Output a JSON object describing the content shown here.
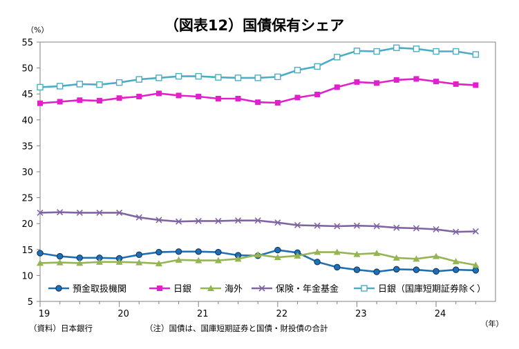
{
  "chart_data": {
    "type": "line",
    "title": "（図表12）国債保有シェア",
    "y_unit": "（%）",
    "x_unit": "（年）",
    "ylim": [
      5,
      55
    ],
    "yticks": [
      5,
      10,
      15,
      20,
      25,
      30,
      35,
      40,
      45,
      50,
      55
    ],
    "x_range": [
      2019,
      2024.75
    ],
    "x_tick_labels": [
      {
        "x": 2019,
        "label": "19"
      },
      {
        "x": 2020,
        "label": "20"
      },
      {
        "x": 2021,
        "label": "21"
      },
      {
        "x": 2022,
        "label": "22"
      },
      {
        "x": 2023,
        "label": "23"
      },
      {
        "x": 2024,
        "label": "24"
      }
    ],
    "x": [
      2019.0,
      2019.25,
      2019.5,
      2019.75,
      2020.0,
      2020.25,
      2020.5,
      2020.75,
      2021.0,
      2021.25,
      2021.5,
      2021.75,
      2022.0,
      2022.25,
      2022.5,
      2022.75,
      2023.0,
      2023.25,
      2023.5,
      2023.75,
      2024.0,
      2024.25,
      2024.5
    ],
    "grid": false,
    "legend_position": "bottom",
    "series": [
      {
        "name": "預金取扱機関",
        "color": "#1f6fb4",
        "marker": "circle",
        "values": [
          14.3,
          13.7,
          13.4,
          13.4,
          13.3,
          14.0,
          14.5,
          14.6,
          14.6,
          14.5,
          13.9,
          13.8,
          14.9,
          14.4,
          12.6,
          11.6,
          11.1,
          10.7,
          11.2,
          11.1,
          10.8,
          11.1,
          11.0
        ]
      },
      {
        "name": "日銀",
        "color": "#e020c8",
        "marker": "square",
        "values": [
          43.2,
          43.5,
          43.8,
          43.7,
          44.2,
          44.5,
          45.1,
          44.7,
          44.5,
          44.1,
          44.1,
          43.4,
          43.3,
          44.3,
          44.9,
          46.3,
          47.3,
          47.1,
          47.7,
          47.9,
          47.4,
          46.9,
          46.7
        ]
      },
      {
        "name": "海外",
        "color": "#95b452",
        "marker": "triangle",
        "values": [
          12.4,
          12.5,
          12.4,
          12.6,
          12.6,
          12.5,
          12.3,
          13.0,
          12.9,
          12.9,
          13.2,
          14.0,
          13.5,
          13.8,
          14.5,
          14.5,
          14.1,
          14.3,
          13.4,
          13.2,
          13.7,
          12.7,
          12.0
        ]
      },
      {
        "name": "保険・年金基金",
        "color": "#8064a2",
        "marker": "x",
        "values": [
          22.1,
          22.2,
          22.1,
          22.1,
          22.1,
          21.2,
          20.7,
          20.4,
          20.5,
          20.5,
          20.6,
          20.6,
          20.2,
          19.7,
          19.6,
          19.5,
          19.6,
          19.5,
          19.2,
          19.1,
          18.9,
          18.4,
          18.5
        ]
      },
      {
        "name": "日銀（国庫短期証券除く）",
        "color": "#4bacc6",
        "marker": "open-square",
        "values": [
          46.3,
          46.5,
          46.9,
          46.8,
          47.2,
          47.8,
          48.1,
          48.4,
          48.4,
          48.2,
          48.1,
          48.1,
          48.3,
          49.6,
          50.3,
          52.1,
          53.3,
          53.2,
          53.9,
          53.7,
          53.2,
          53.2,
          52.6
        ]
      }
    ]
  },
  "notes": {
    "source": "（資料）日本銀行",
    "note": "（注）国債は、国庫短期証券と国債・財投債の合計"
  }
}
